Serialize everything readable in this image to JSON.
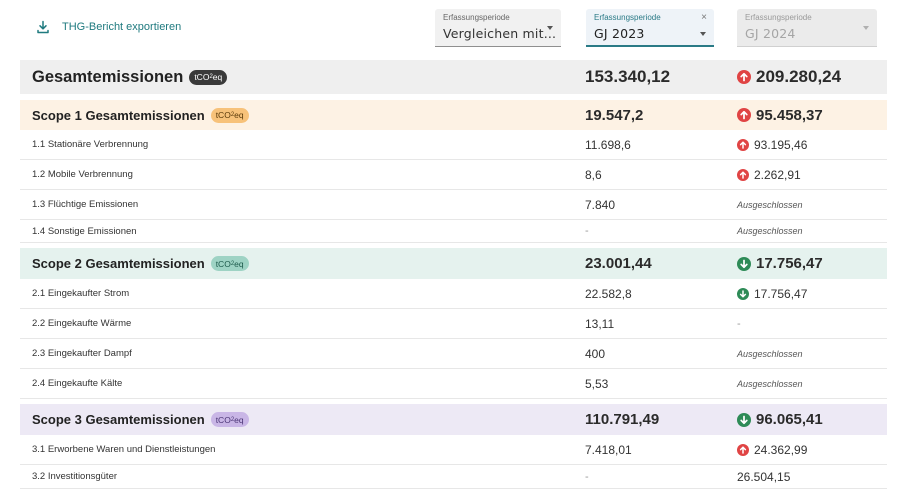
{
  "toolbar": {
    "export_label": "THG-Bericht exportieren",
    "dropdowns": [
      {
        "label": "Erfassungsperiode",
        "value": "Vergleichen mit..."
      },
      {
        "label": "Erfassungsperiode",
        "value": "GJ 2023",
        "clear_icon": "×"
      },
      {
        "label": "Erfassungsperiode",
        "value": "GJ 2024"
      }
    ]
  },
  "unit_badge": {
    "main": "tCO",
    "sub": "2",
    "suffix": "eq"
  },
  "colors": {
    "up_red": "#e04444",
    "down_green": "#2e8b57",
    "accent_teal": "#1f7a7f",
    "total_bg": "#efefef",
    "scope1_bg": "#fdf2e4",
    "scope2_bg": "#e5f2ee",
    "scope3_bg": "#ede9f5"
  },
  "rows": [
    {
      "name": "Gesamtemissionen",
      "v1": "153.340,12",
      "v2": "209.280,24",
      "trend": "up"
    },
    {
      "name": "Scope 1 Gesamtemissionen",
      "v1": "19.547,2",
      "v2": "95.458,37",
      "trend": "up"
    },
    {
      "name": "1.1 Stationäre Verbrennung",
      "v1": "11.698,6",
      "v2": "93.195,46",
      "trend": "up"
    },
    {
      "name": "1.2 Mobile Verbrennung",
      "v1": "8,6",
      "v2": "2.262,91",
      "trend": "up"
    },
    {
      "name": "1.3 Flüchtige Emissionen",
      "v1": "7.840",
      "v2": "Ausgeschlossen",
      "trend": "none"
    },
    {
      "name": "1.4 Sonstige Emissionen",
      "v1": "-",
      "v2": "Ausgeschlossen",
      "trend": "none"
    },
    {
      "name": "Scope 2 Gesamtemissionen",
      "v1": "23.001,44",
      "v2": "17.756,47",
      "trend": "down"
    },
    {
      "name": "2.1 Eingekaufter Strom",
      "v1": "22.582,8",
      "v2": "17.756,47",
      "trend": "down"
    },
    {
      "name": "2.2 Eingekaufte Wärme",
      "v1": "13,11",
      "v2": "-",
      "trend": "none"
    },
    {
      "name": "2.3 Eingekaufter Dampf",
      "v1": "400",
      "v2": "Ausgeschlossen",
      "trend": "none"
    },
    {
      "name": "2.4 Eingekaufte Kälte",
      "v1": "5,53",
      "v2": "Ausgeschlossen",
      "trend": "none"
    },
    {
      "name": "Scope 3 Gesamtemissionen",
      "v1": "110.791,49",
      "v2": "96.065,41",
      "trend": "down"
    },
    {
      "name": "3.1 Erworbene Waren und Dienstleistungen",
      "v1": "7.418,01",
      "v2": "24.362,99",
      "trend": "up"
    },
    {
      "name": "3.2 Investitionsgüter",
      "v1": "-",
      "v2": "26.504,15",
      "trend": "none"
    }
  ]
}
